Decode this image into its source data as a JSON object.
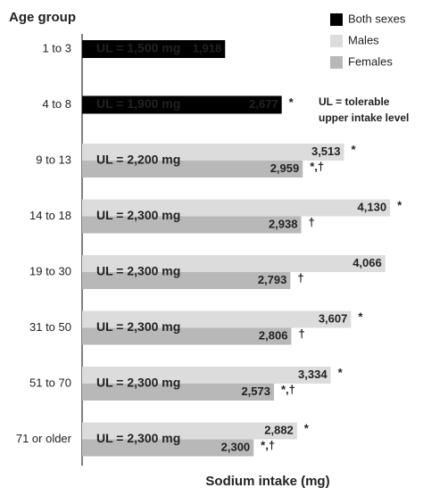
{
  "chart_data": {
    "type": "bar",
    "orientation": "horizontal",
    "y_axis_title": "Age group",
    "x_axis_title": "Sodium intake (mg)",
    "annotation": [
      "UL = tolerable",
      "upper intake level"
    ],
    "categories": [
      "1 to 3",
      "4 to 8",
      "9 to 13",
      "14 to 18",
      "19 to 30",
      "31 to 50",
      "51 to 70",
      "71 or older"
    ],
    "ul_labels": [
      "UL = 1,500 mg",
      "UL = 1,900 mg",
      "UL = 2,200 mg",
      "UL = 2,300 mg",
      "UL = 2,300 mg",
      "UL = 2,300 mg",
      "UL = 2,300 mg",
      "UL = 2,300 mg"
    ],
    "series": [
      {
        "name": "Both sexes",
        "color": "#000000",
        "values": [
          1918,
          2677,
          null,
          null,
          null,
          null,
          null,
          null
        ],
        "value_labels": [
          "1,918",
          "2,677",
          null,
          null,
          null,
          null,
          null,
          null
        ],
        "markers": [
          null,
          "*",
          null,
          null,
          null,
          null,
          null,
          null
        ]
      },
      {
        "name": "Males",
        "color": "#dcdcdc",
        "values": [
          null,
          null,
          3513,
          4130,
          4066,
          3607,
          3334,
          2882
        ],
        "value_labels": [
          null,
          null,
          "3,513",
          "4,130",
          "4,066",
          "3,607",
          "3,334",
          "2,882"
        ],
        "markers": [
          null,
          null,
          "*",
          "*",
          null,
          "*",
          "*",
          "*"
        ]
      },
      {
        "name": "Females",
        "color": "#b8b8b8",
        "values": [
          null,
          null,
          2959,
          2938,
          2793,
          2806,
          2573,
          2300
        ],
        "value_labels": [
          null,
          null,
          "2,959",
          "2,938",
          "2,793",
          "2,806",
          "2,573",
          "2,300"
        ],
        "markers": [
          null,
          null,
          "*,†",
          "†",
          "†",
          "†",
          "*,†",
          "*,†"
        ]
      }
    ],
    "xlim": [
      0,
      4500
    ],
    "legend_position": "top-right"
  }
}
